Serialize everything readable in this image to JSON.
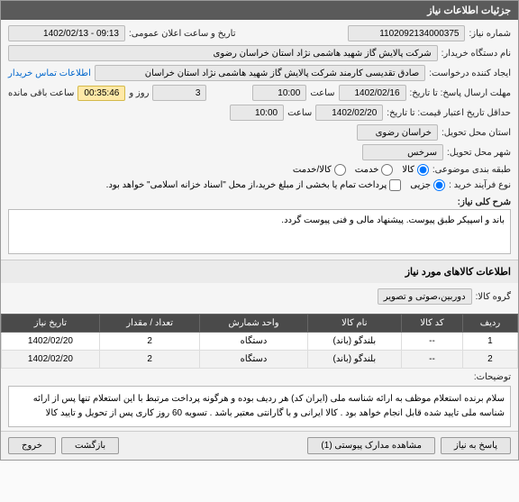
{
  "header": "جزئیات اطلاعات نیاز",
  "fields": {
    "need_no_label": "شماره نیاز:",
    "need_no": "1102092134000375",
    "announce_label": "تاریخ و ساعت اعلان عمومی:",
    "announce": "09:13 - 1402/02/13",
    "buyer_label": "نام دستگاه خریدار:",
    "buyer": "شرکت پالایش گاز شهید هاشمی نژاد   استان خراسان رضوی",
    "requester_label": "ایجاد کننده درخواست:",
    "requester": "صادق تقدیسی کارمند شرکت پالایش گاز شهید هاشمی نژاد   استان خراسان",
    "contact_link": "اطلاعات تماس خریدار",
    "deadline_label": "مهلت ارسال پاسخ: تا تاریخ:",
    "deadline_date": "1402/02/16",
    "time_label": "ساعت",
    "deadline_time": "10:00",
    "days_count": "3",
    "days_suffix": "روز و",
    "countdown": "00:35:46",
    "remaining": "ساعت باقی مانده",
    "validity_label": "حداقل تاریخ اعتبار قیمت: تا تاریخ:",
    "validity_date": "1402/02/20",
    "validity_time": "10:00",
    "province_label": "استان محل تحویل:",
    "province": "خراسان رضوی",
    "city_label": "شهر محل تحویل:",
    "city": "سرخس",
    "category_label": "طبقه بندی موضوعی:",
    "cat_goods": "کالا",
    "cat_service": "خدمت",
    "cat_both": "کالا/خدمت",
    "buy_process_label": "نوع فرآیند خرید :",
    "bp_partial": "جزیی",
    "bp_note": "پرداخت تمام یا بخشی از مبلغ خرید،از محل \"اسناد خزانه اسلامی\" خواهد بود.",
    "desc_label": "شرح کلی نیاز:",
    "desc_text": "باند و اسپیکر طبق پیوست. پیشنهاد مالی و فنی پیوست گردد."
  },
  "goods_section_title": "اطلاعات کالاهای مورد نیاز",
  "goods_group_label": "گروه کالا:",
  "goods_group": "دوربین،صوتی و تصویر",
  "table": {
    "cols": [
      "ردیف",
      "کد کالا",
      "نام کالا",
      "واحد شمارش",
      "تعداد / مقدار",
      "تاریخ نیاز"
    ],
    "rows": [
      [
        "1",
        "--",
        "بلندگو (باند)",
        "دستگاه",
        "2",
        "1402/02/20"
      ],
      [
        "2",
        "--",
        "بلندگو (باند)",
        "دستگاه",
        "2",
        "1402/02/20"
      ]
    ]
  },
  "notes_label": "توضیحات:",
  "notes_text": "سلام  برنده استعلام موظف به ارائه شناسه ملی (ایران کد) هر ردیف بوده و هرگونه پرداخت مرتبط با این استعلام تنها پس از ارائه شناسه ملی تایید شده قابل انجام خواهد بود . کالا ایرانی و با گارانتی معتبر باشد . تسویه 60 روز کاری پس از تحویل و تایید کالا",
  "buttons": {
    "reply": "پاسخ به نیاز",
    "attachments": "مشاهده مدارک پیوستی (1)",
    "back": "بازگشت",
    "exit": "خروج"
  }
}
